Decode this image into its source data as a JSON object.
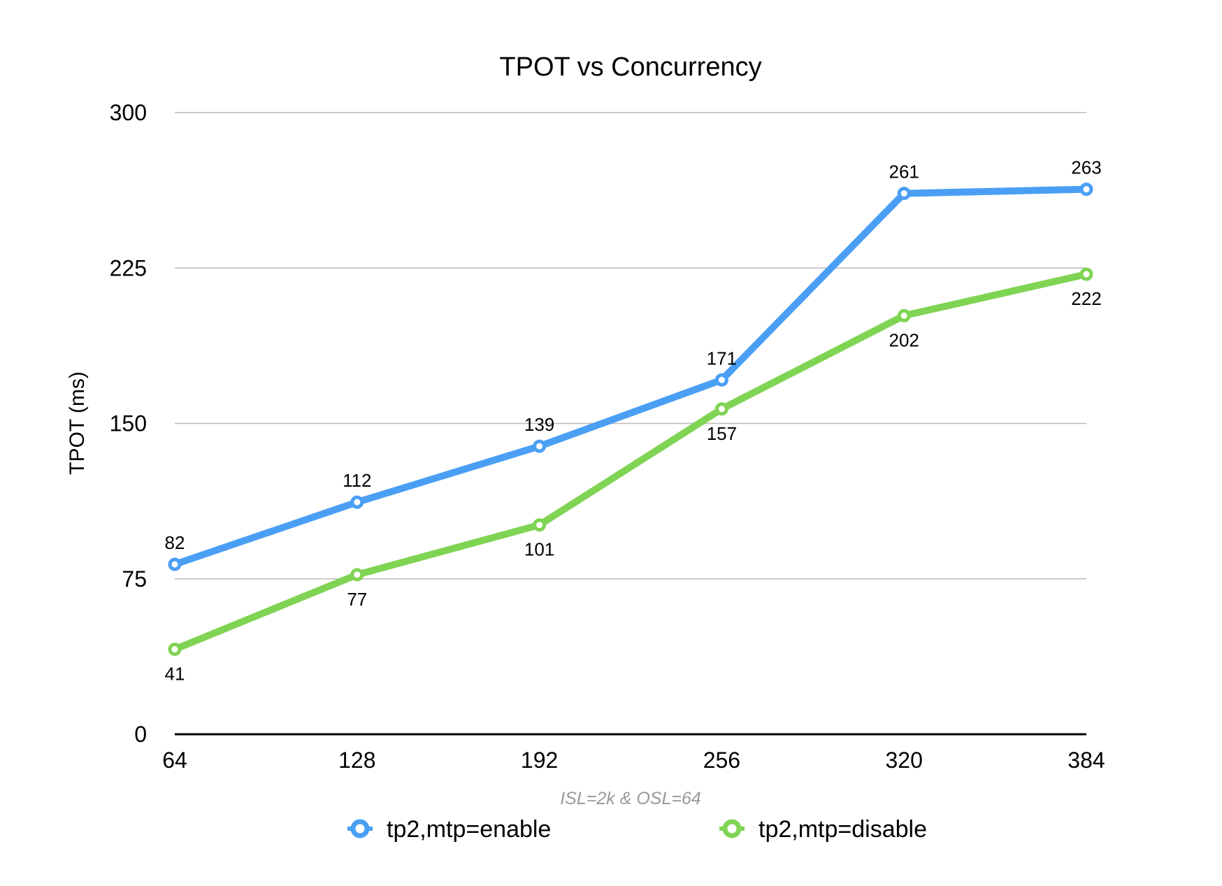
{
  "chart_data": {
    "type": "line",
    "title": "TPOT vs Concurrency",
    "xlabel": "ISL=2k & OSL=64",
    "ylabel": "TPOT (ms)",
    "x": [
      64,
      128,
      192,
      256,
      320,
      384
    ],
    "x_tick_labels": [
      "64",
      "128",
      "192",
      "256",
      "320",
      "384"
    ],
    "ylim": [
      0,
      300
    ],
    "y_ticks": [
      0,
      75,
      150,
      225,
      300
    ],
    "grid": true,
    "legend_position": "bottom",
    "series": [
      {
        "name": "tp2,mtp=enable",
        "color": "#4a9ff5",
        "values": [
          82,
          112,
          139,
          171,
          261,
          263
        ],
        "label_position": "above"
      },
      {
        "name": "tp2,mtp=disable",
        "color": "#7fd453",
        "values": [
          41,
          77,
          101,
          157,
          202,
          222
        ],
        "label_position": "below"
      }
    ]
  }
}
